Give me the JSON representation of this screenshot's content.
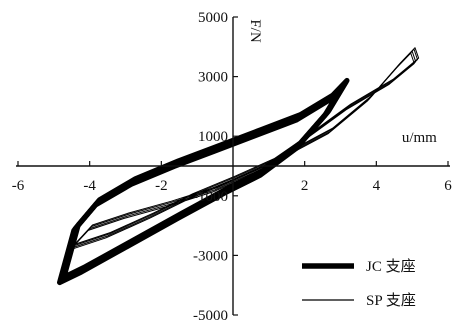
{
  "chart_data": {
    "type": "line",
    "title": "",
    "xlabel": "u/mm",
    "ylabel": "F/N",
    "xlim": [
      -6,
      6
    ],
    "ylim": [
      -5000,
      5000
    ],
    "x_ticks": [
      -6,
      -4,
      -2,
      2,
      4,
      6
    ],
    "x_tick_labels": [
      "-6",
      "-4",
      "-2",
      "2",
      "4",
      "6"
    ],
    "y_ticks": [
      5000,
      3000,
      1000,
      -1000,
      -3000,
      -5000
    ],
    "y_tick_labels": [
      "5000",
      "3000",
      "1000",
      "-1000",
      "-3000",
      "-5000"
    ],
    "grid": false,
    "legend_position": "bottom-right",
    "series": [
      {
        "name": "JC 支座",
        "color": "#000000",
        "style": "thick",
        "cycles": 4,
        "loop": [
          [
            -4.8,
            -3850
          ],
          [
            -4.2,
            -3500
          ],
          [
            -3.0,
            -2700
          ],
          [
            -1.5,
            -1700
          ],
          [
            -0.2,
            -850
          ],
          [
            0.8,
            -250
          ],
          [
            1.8,
            650
          ],
          [
            2.6,
            1750
          ],
          [
            3.1,
            2750
          ],
          [
            2.7,
            2250
          ],
          [
            1.8,
            1600
          ],
          [
            0.6,
            1050
          ],
          [
            -0.5,
            550
          ],
          [
            -1.6,
            50
          ],
          [
            -2.8,
            -550
          ],
          [
            -3.8,
            -1250
          ],
          [
            -4.4,
            -2100
          ],
          [
            -4.8,
            -3850
          ]
        ]
      },
      {
        "name": "SP 支座",
        "color": "#000000",
        "style": "thin",
        "cycles": 4,
        "loop": [
          [
            -4.5,
            -2750
          ],
          [
            -3.5,
            -2350
          ],
          [
            -2.3,
            -1700
          ],
          [
            -1.2,
            -1050
          ],
          [
            0.0,
            -450
          ],
          [
            1.3,
            250
          ],
          [
            2.7,
            1150
          ],
          [
            3.8,
            2250
          ],
          [
            4.6,
            3350
          ],
          [
            5.0,
            3850
          ],
          [
            5.1,
            3500
          ],
          [
            4.4,
            2800
          ],
          [
            3.2,
            1950
          ],
          [
            2.0,
            900
          ],
          [
            0.8,
            -100
          ],
          [
            -0.5,
            -800
          ],
          [
            -1.8,
            -1300
          ],
          [
            -3.0,
            -1700
          ],
          [
            -4.0,
            -2100
          ],
          [
            -4.5,
            -2750
          ]
        ]
      }
    ]
  }
}
